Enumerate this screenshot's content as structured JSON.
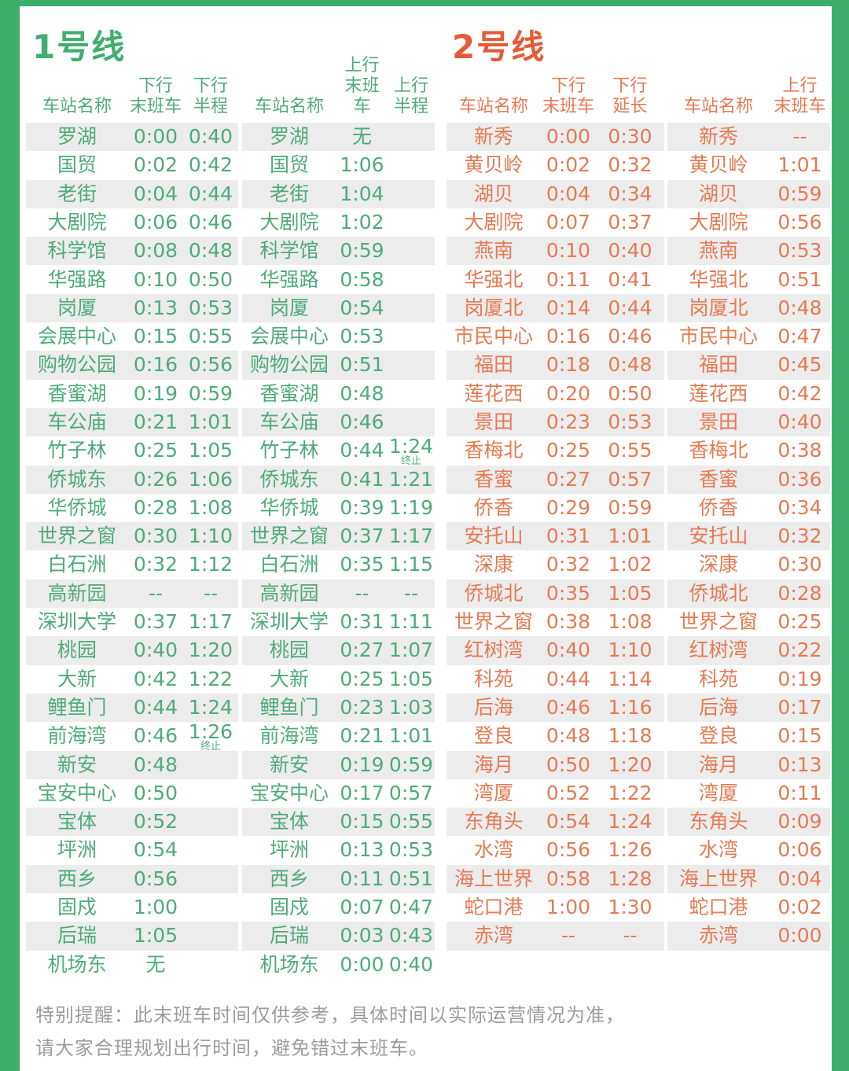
{
  "page": {
    "frame_color": "#3cae6a",
    "stripe_color": "#ececec",
    "footer_color": "#9c9c9c"
  },
  "lines": [
    {
      "title": "1号线",
      "title_color": "#3fae6e",
      "text_color": "#4fab7a",
      "groups": [
        {
          "headers": [
            "车站名称",
            "下行\n末班车",
            "下行\n半程"
          ],
          "rows": [
            [
              "罗湖",
              "0:00",
              "0:40"
            ],
            [
              "国贸",
              "0:02",
              "0:42"
            ],
            [
              "老街",
              "0:04",
              "0:44"
            ],
            [
              "大剧院",
              "0:06",
              "0:46"
            ],
            [
              "科学馆",
              "0:08",
              "0:48"
            ],
            [
              "华强路",
              "0:10",
              "0:50"
            ],
            [
              "岗厦",
              "0:13",
              "0:53"
            ],
            [
              "会展中心",
              "0:15",
              "0:55"
            ],
            [
              "购物公园",
              "0:16",
              "0:56"
            ],
            [
              "香蜜湖",
              "0:19",
              "0:59"
            ],
            [
              "车公庙",
              "0:21",
              "1:01"
            ],
            [
              "竹子林",
              "0:25",
              "1:05"
            ],
            [
              "侨城东",
              "0:26",
              "1:06"
            ],
            [
              "华侨城",
              "0:28",
              "1:08"
            ],
            [
              "世界之窗",
              "0:30",
              "1:10"
            ],
            [
              "白石洲",
              "0:32",
              "1:12"
            ],
            [
              "高新园",
              "--",
              "--"
            ],
            [
              "深圳大学",
              "0:37",
              "1:17"
            ],
            [
              "桃园",
              "0:40",
              "1:20"
            ],
            [
              "大新",
              "0:42",
              "1:22"
            ],
            [
              "鲤鱼门",
              "0:44",
              "1:24"
            ],
            [
              "前海湾",
              "0:46",
              {
                "v": "1:26",
                "note": "终止"
              }
            ],
            [
              "新安",
              "0:48",
              ""
            ],
            [
              "宝安中心",
              "0:50",
              ""
            ],
            [
              "宝体",
              "0:52",
              ""
            ],
            [
              "坪洲",
              "0:54",
              ""
            ],
            [
              "西乡",
              "0:56",
              ""
            ],
            [
              "固戍",
              "1:00",
              ""
            ],
            [
              "后瑞",
              "1:05",
              ""
            ],
            [
              "机场东",
              "无",
              ""
            ]
          ]
        },
        {
          "headers": [
            "车站名称",
            "上行\n末班车",
            "上行\n半程"
          ],
          "rows": [
            [
              "罗湖",
              "无",
              ""
            ],
            [
              "国贸",
              "1:06",
              ""
            ],
            [
              "老街",
              "1:04",
              ""
            ],
            [
              "大剧院",
              "1:02",
              ""
            ],
            [
              "科学馆",
              "0:59",
              ""
            ],
            [
              "华强路",
              "0:58",
              ""
            ],
            [
              "岗厦",
              "0:54",
              ""
            ],
            [
              "会展中心",
              "0:53",
              ""
            ],
            [
              "购物公园",
              "0:51",
              ""
            ],
            [
              "香蜜湖",
              "0:48",
              ""
            ],
            [
              "车公庙",
              "0:46",
              ""
            ],
            [
              "竹子林",
              "0:44",
              {
                "v": "1:24",
                "note": "终止"
              }
            ],
            [
              "侨城东",
              "0:41",
              "1:21"
            ],
            [
              "华侨城",
              "0:39",
              "1:19"
            ],
            [
              "世界之窗",
              "0:37",
              "1:17"
            ],
            [
              "白石洲",
              "0:35",
              "1:15"
            ],
            [
              "高新园",
              "--",
              "--"
            ],
            [
              "深圳大学",
              "0:31",
              "1:11"
            ],
            [
              "桃园",
              "0:27",
              "1:07"
            ],
            [
              "大新",
              "0:25",
              "1:05"
            ],
            [
              "鲤鱼门",
              "0:23",
              "1:03"
            ],
            [
              "前海湾",
              "0:21",
              "1:01"
            ],
            [
              "新安",
              "0:19",
              "0:59"
            ],
            [
              "宝安中心",
              "0:17",
              "0:57"
            ],
            [
              "宝体",
              "0:15",
              "0:55"
            ],
            [
              "坪洲",
              "0:13",
              "0:53"
            ],
            [
              "西乡",
              "0:11",
              "0:51"
            ],
            [
              "固戍",
              "0:07",
              "0:47"
            ],
            [
              "后瑞",
              "0:03",
              "0:43"
            ],
            [
              "机场东",
              "0:00",
              "0:40"
            ]
          ]
        }
      ]
    },
    {
      "title": "2号线",
      "title_color": "#e55b36",
      "text_color": "#e57a53",
      "groups": [
        {
          "headers": [
            "车站名称",
            "下行\n末班车",
            "下行\n延长"
          ],
          "rows": [
            [
              "新秀",
              "0:00",
              "0:30"
            ],
            [
              "黄贝岭",
              "0:02",
              "0:32"
            ],
            [
              "湖贝",
              "0:04",
              "0:34"
            ],
            [
              "大剧院",
              "0:07",
              "0:37"
            ],
            [
              "燕南",
              "0:10",
              "0:40"
            ],
            [
              "华强北",
              "0:11",
              "0:41"
            ],
            [
              "岗厦北",
              "0:14",
              "0:44"
            ],
            [
              "市民中心",
              "0:16",
              "0:46"
            ],
            [
              "福田",
              "0:18",
              "0:48"
            ],
            [
              "莲花西",
              "0:20",
              "0:50"
            ],
            [
              "景田",
              "0:23",
              "0:53"
            ],
            [
              "香梅北",
              "0:25",
              "0:55"
            ],
            [
              "香蜜",
              "0:27",
              "0:57"
            ],
            [
              "侨香",
              "0:29",
              "0:59"
            ],
            [
              "安托山",
              "0:31",
              "1:01"
            ],
            [
              "深康",
              "0:32",
              "1:02"
            ],
            [
              "侨城北",
              "0:35",
              "1:05"
            ],
            [
              "世界之窗",
              "0:38",
              "1:08"
            ],
            [
              "红树湾",
              "0:40",
              "1:10"
            ],
            [
              "科苑",
              "0:44",
              "1:14"
            ],
            [
              "后海",
              "0:46",
              "1:16"
            ],
            [
              "登良",
              "0:48",
              "1:18"
            ],
            [
              "海月",
              "0:50",
              "1:20"
            ],
            [
              "湾厦",
              "0:52",
              "1:22"
            ],
            [
              "东角头",
              "0:54",
              "1:24"
            ],
            [
              "水湾",
              "0:56",
              "1:26"
            ],
            [
              "海上世界",
              "0:58",
              "1:28"
            ],
            [
              "蛇口港",
              "1:00",
              "1:30"
            ],
            [
              "赤湾",
              "--",
              "--"
            ]
          ]
        },
        {
          "headers": [
            "车站名称",
            "上行\n末班车"
          ],
          "rows": [
            [
              "新秀",
              "--"
            ],
            [
              "黄贝岭",
              "1:01"
            ],
            [
              "湖贝",
              "0:59"
            ],
            [
              "大剧院",
              "0:56"
            ],
            [
              "燕南",
              "0:53"
            ],
            [
              "华强北",
              "0:51"
            ],
            [
              "岗厦北",
              "0:48"
            ],
            [
              "市民中心",
              "0:47"
            ],
            [
              "福田",
              "0:45"
            ],
            [
              "莲花西",
              "0:42"
            ],
            [
              "景田",
              "0:40"
            ],
            [
              "香梅北",
              "0:38"
            ],
            [
              "香蜜",
              "0:36"
            ],
            [
              "侨香",
              "0:34"
            ],
            [
              "安托山",
              "0:32"
            ],
            [
              "深康",
              "0:30"
            ],
            [
              "侨城北",
              "0:28"
            ],
            [
              "世界之窗",
              "0:25"
            ],
            [
              "红树湾",
              "0:22"
            ],
            [
              "科苑",
              "0:19"
            ],
            [
              "后海",
              "0:17"
            ],
            [
              "登良",
              "0:15"
            ],
            [
              "海月",
              "0:13"
            ],
            [
              "湾厦",
              "0:11"
            ],
            [
              "东角头",
              "0:09"
            ],
            [
              "水湾",
              "0:06"
            ],
            [
              "海上世界",
              "0:04"
            ],
            [
              "蛇口港",
              "0:02"
            ],
            [
              "赤湾",
              "0:00"
            ]
          ]
        }
      ]
    }
  ],
  "footer": {
    "line1": "特别提醒：此末班车时间仅供参考，具体时间以实际运营情况为准，",
    "line2": "请大家合理规划出行时间，避免错过末班车。"
  }
}
